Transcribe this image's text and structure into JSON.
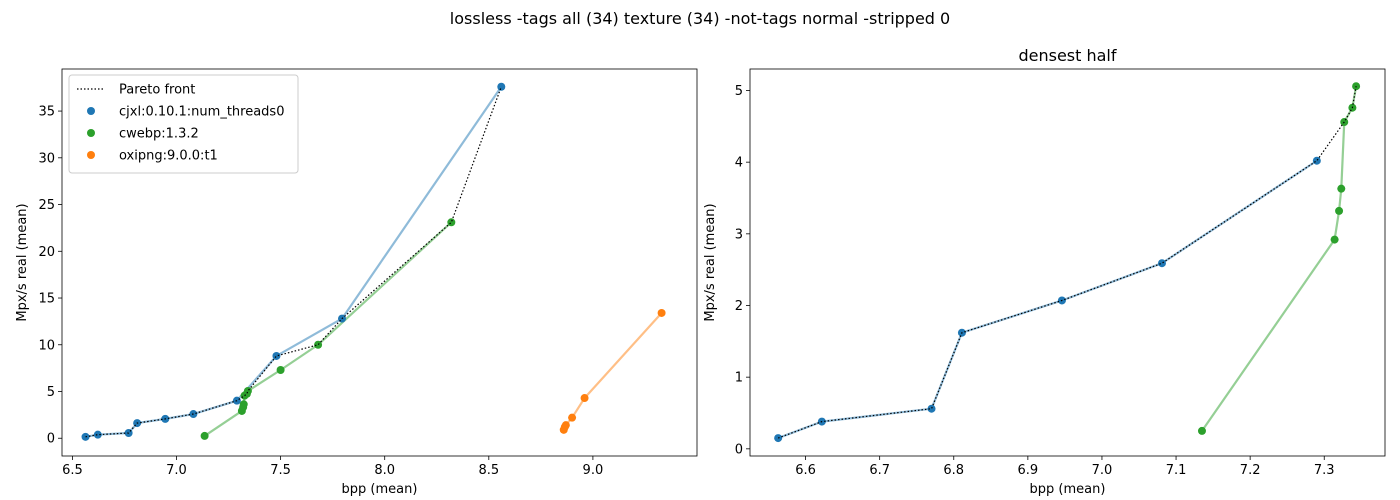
{
  "suptitle": "lossless -tags all (34) texture (34) -not-tags normal -stripped 0",
  "colors": {
    "cjxl": "#1f77b4",
    "cwebp": "#2ca02c",
    "oxipng": "#ff7f0e",
    "pareto": "#000000"
  },
  "chart_data": [
    {
      "type": "line",
      "title": "",
      "xlabel": "bpp (mean)",
      "ylabel": "Mpx/s real (mean)",
      "xlim": [
        6.45,
        9.5
      ],
      "ylim": [
        -1.9,
        39.5
      ],
      "xticks": [
        "6.5",
        "7.0",
        "7.5",
        "8.0",
        "8.5",
        "9.0"
      ],
      "yticks": [
        "0",
        "5",
        "10",
        "15",
        "20",
        "25",
        "30",
        "35"
      ],
      "legend": {
        "placement": "top-left",
        "entries": [
          "Pareto front",
          "cjxl:0.10.1:num_threads0",
          "cwebp:1.3.2",
          "oxipng:9.0.0:t1"
        ]
      },
      "series": [
        {
          "name": "cjxl:0.10.1:num_threads0",
          "color": "#1f77b4",
          "x": [
            6.563,
            6.622,
            6.77,
            6.811,
            6.946,
            7.081,
            7.29,
            7.48,
            7.795,
            8.56
          ],
          "y": [
            0.15,
            0.38,
            0.56,
            1.62,
            2.07,
            2.59,
            4.02,
            8.8,
            12.8,
            37.6
          ]
        },
        {
          "name": "cwebp:1.3.2",
          "color": "#2ca02c",
          "x": [
            7.135,
            7.314,
            7.32,
            7.323,
            7.327,
            7.338,
            7.343,
            7.5,
            7.68,
            8.32
          ],
          "y": [
            0.25,
            2.92,
            3.32,
            3.63,
            4.56,
            4.76,
            5.06,
            7.3,
            10.0,
            23.1
          ]
        },
        {
          "name": "oxipng:9.0.0:t1",
          "color": "#ff7f0e",
          "x": [
            8.86,
            8.865,
            8.87,
            8.9,
            8.96,
            9.33
          ],
          "y": [
            0.9,
            1.2,
            1.4,
            2.2,
            4.3,
            13.4
          ]
        },
        {
          "name": "Pareto front",
          "color": "#000000",
          "x": [
            6.563,
            6.622,
            6.77,
            6.811,
            6.946,
            7.081,
            7.29,
            7.327,
            7.338,
            7.343,
            7.48,
            7.68,
            7.795,
            8.32,
            8.56
          ],
          "y": [
            0.15,
            0.38,
            0.56,
            1.62,
            2.07,
            2.59,
            4.02,
            4.56,
            4.76,
            5.06,
            8.8,
            10.0,
            12.8,
            23.1,
            37.6
          ]
        }
      ]
    },
    {
      "type": "line",
      "title": "densest half",
      "xlabel": "bpp (mean)",
      "ylabel": "Mpx/s real (mean)",
      "xlim": [
        6.525,
        7.382
      ],
      "ylim": [
        -0.1,
        5.3
      ],
      "xticks": [
        "6.6",
        "6.7",
        "6.8",
        "6.9",
        "7.0",
        "7.1",
        "7.2",
        "7.3"
      ],
      "yticks": [
        "0",
        "1",
        "2",
        "3",
        "4",
        "5"
      ],
      "series": [
        {
          "name": "cjxl:0.10.1:num_threads0",
          "color": "#1f77b4",
          "x": [
            6.563,
            6.622,
            6.77,
            6.811,
            6.946,
            7.081,
            7.29
          ],
          "y": [
            0.15,
            0.38,
            0.56,
            1.62,
            2.07,
            2.59,
            4.02
          ]
        },
        {
          "name": "cwebp:1.3.2",
          "color": "#2ca02c",
          "x": [
            7.135,
            7.314,
            7.32,
            7.323,
            7.327,
            7.338,
            7.343
          ],
          "y": [
            0.25,
            2.92,
            3.32,
            3.63,
            4.56,
            4.76,
            5.06
          ]
        },
        {
          "name": "Pareto front",
          "color": "#000000",
          "x": [
            6.563,
            6.622,
            6.77,
            6.811,
            6.946,
            7.081,
            7.29,
            7.327,
            7.338,
            7.343
          ],
          "y": [
            0.15,
            0.38,
            0.56,
            1.62,
            2.07,
            2.59,
            4.02,
            4.56,
            4.76,
            5.06
          ]
        }
      ]
    }
  ]
}
